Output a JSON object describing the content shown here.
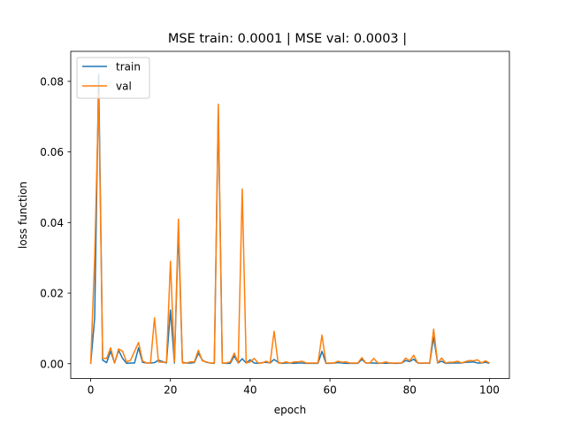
{
  "chart_data": {
    "type": "line",
    "title": "MSE train: 0.0001 | MSE val: 0.0003 |",
    "xlabel": "epoch",
    "ylabel": "loss function",
    "xlim": [
      -5,
      105
    ],
    "ylim": [
      -0.0042,
      0.0885
    ],
    "xticks": [
      0,
      20,
      40,
      60,
      80,
      100
    ],
    "yticks": [
      0.0,
      0.02,
      0.04,
      0.06,
      0.08
    ],
    "ytick_labels": [
      "0.00",
      "0.02",
      "0.04",
      "0.06",
      "0.08"
    ],
    "grid": false,
    "legend_position": "top-left",
    "x": [
      0,
      1,
      2,
      3,
      4,
      5,
      6,
      7,
      8,
      9,
      10,
      11,
      12,
      13,
      14,
      15,
      16,
      17,
      18,
      19,
      20,
      21,
      22,
      23,
      24,
      25,
      26,
      27,
      28,
      29,
      30,
      31,
      32,
      33,
      34,
      35,
      36,
      37,
      38,
      39,
      40,
      41,
      42,
      43,
      44,
      45,
      46,
      47,
      48,
      49,
      50,
      51,
      52,
      53,
      54,
      55,
      56,
      57,
      58,
      59,
      60,
      61,
      62,
      63,
      64,
      65,
      66,
      67,
      68,
      69,
      70,
      71,
      72,
      73,
      74,
      75,
      76,
      77,
      78,
      79,
      80,
      81,
      82,
      83,
      84,
      85,
      86,
      87,
      88,
      89,
      90,
      91,
      92,
      93,
      94,
      95,
      96,
      97,
      98,
      99,
      100
    ],
    "series": [
      {
        "name": "train",
        "color": "#1f77b4",
        "values": [
          0.0,
          0.013,
          0.082,
          0.001,
          0.0003,
          0.0035,
          0.0002,
          0.0038,
          0.0015,
          0.0001,
          0.0002,
          0.0002,
          0.0045,
          0.0004,
          0.0002,
          0.0002,
          0.0003,
          0.001,
          0.0006,
          0.0002,
          0.0152,
          0.0002,
          0.038,
          0.0004,
          0.0002,
          0.0002,
          0.0003,
          0.003,
          0.001,
          0.0004,
          0.0002,
          0.0001,
          0.0718,
          0.0002,
          0.0001,
          0.0001,
          0.0022,
          0.0002,
          0.0014,
          0.0002,
          0.0011,
          0.0002,
          0.0001,
          0.0003,
          0.0004,
          0.0002,
          0.0012,
          0.0004,
          0.0001,
          0.0002,
          0.0002,
          0.0001,
          0.0002,
          0.0002,
          0.0001,
          0.0001,
          0.0001,
          0.0001,
          0.0035,
          0.0001,
          0.0001,
          0.0002,
          0.0003,
          0.0002,
          0.0001,
          0.0001,
          0.0001,
          0.0001,
          0.0012,
          0.0002,
          0.0002,
          0.0002,
          0.0001,
          0.0002,
          0.0001,
          0.0002,
          0.0001,
          0.0001,
          0.0002,
          0.0009,
          0.0006,
          0.0013,
          0.0002,
          0.0001,
          0.0002,
          0.0001,
          0.0075,
          0.0002,
          0.0007,
          0.0001,
          0.0002,
          0.0002,
          0.0002,
          0.0002,
          0.0004,
          0.0004,
          0.0005,
          0.0002,
          0.0002,
          0.0004,
          0.0001
        ]
      },
      {
        "name": "val",
        "color": "#ff7f0e",
        "values": [
          0.0,
          0.03,
          0.0765,
          0.0015,
          0.0015,
          0.0045,
          0.0002,
          0.0042,
          0.0035,
          0.0005,
          0.001,
          0.0035,
          0.006,
          0.0008,
          0.0002,
          0.0002,
          0.013,
          0.0005,
          0.0004,
          0.0004,
          0.029,
          0.0005,
          0.041,
          0.0002,
          0.0002,
          0.0005,
          0.0005,
          0.0038,
          0.0008,
          0.0005,
          0.0002,
          0.0002,
          0.0735,
          0.0002,
          0.0002,
          0.0005,
          0.003,
          0.0002,
          0.0495,
          0.0002,
          0.0005,
          0.0015,
          0.0002,
          0.0002,
          0.0007,
          0.0002,
          0.0092,
          0.0002,
          0.0002,
          0.0005,
          0.0002,
          0.0005,
          0.0005,
          0.0007,
          0.0002,
          0.0002,
          0.0002,
          0.0002,
          0.0081,
          0.0002,
          0.0002,
          0.0002,
          0.0007,
          0.0004,
          0.0005,
          0.0002,
          0.0002,
          0.0002,
          0.0017,
          0.0002,
          0.0002,
          0.0015,
          0.0002,
          0.0002,
          0.0005,
          0.0002,
          0.0002,
          0.0002,
          0.0002,
          0.0016,
          0.0008,
          0.0024,
          0.0002,
          0.0002,
          0.0002,
          0.0002,
          0.0098,
          0.0002,
          0.0016,
          0.0002,
          0.0004,
          0.0004,
          0.0007,
          0.0002,
          0.0006,
          0.0009,
          0.0008,
          0.0011,
          0.0002,
          0.0008,
          0.0002
        ]
      }
    ]
  }
}
